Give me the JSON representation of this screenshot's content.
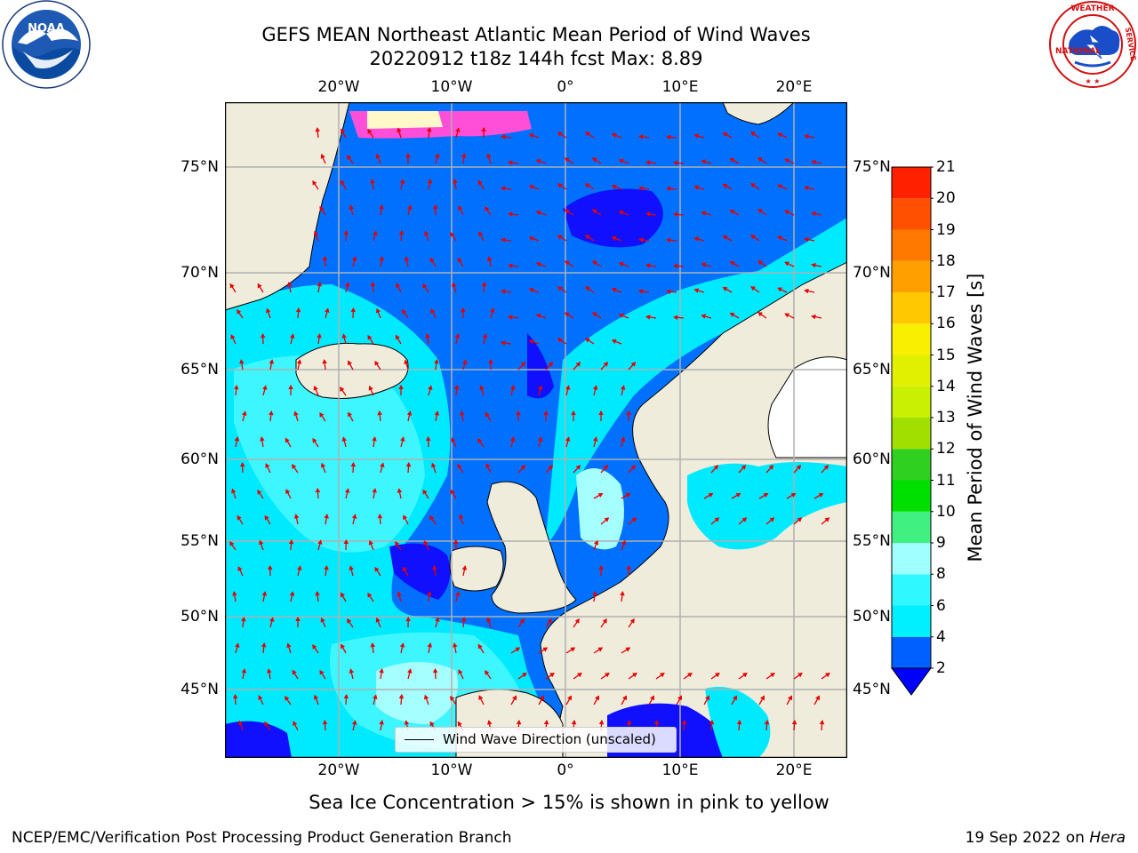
{
  "title": {
    "line1": "GEFS MEAN Northeast Atlantic Mean Period of Wind Waves",
    "line2": "20220912 t18z 144h fcst   Max: 8.89"
  },
  "logos": {
    "left": {
      "name": "noaa-logo",
      "text": "NOAA",
      "ring_text": "NATIONAL OCEANIC AND ATMOSPHERIC ADMINISTRATION · U.S. DEPARTMENT OF COMMERCE"
    },
    "right": {
      "name": "nws-logo",
      "ring_text": "NATIONAL WEATHER SERVICE"
    }
  },
  "map": {
    "lon_ticks": [
      "20°W",
      "10°W",
      "0°",
      "10°E",
      "20°E"
    ],
    "lat_ticks": [
      "75°N",
      "70°N",
      "65°N",
      "60°N",
      "55°N",
      "50°N",
      "45°N"
    ],
    "legend": "Wind Wave Direction (unscaled)",
    "max_period": 8.89,
    "colors": {
      "land": "#efecdc",
      "grid": "#b0b0b0",
      "arrow": "#e60000"
    }
  },
  "colorbar": {
    "title": "Mean Period of Wind Waves [s]",
    "ticks": [
      "2",
      "4",
      "6",
      "8",
      "9",
      "10",
      "11",
      "12",
      "13",
      "14",
      "15",
      "16",
      "17",
      "18",
      "19",
      "20",
      "21"
    ],
    "bands": [
      {
        "from": 2,
        "to": 4,
        "color": "#0060ff"
      },
      {
        "from": 4,
        "to": 6,
        "color": "#00f0ff"
      },
      {
        "from": 6,
        "to": 8,
        "color": "#30f8ff"
      },
      {
        "from": 8,
        "to": 9,
        "color": "#a0ffff"
      },
      {
        "from": 9,
        "to": 10,
        "color": "#40f080"
      },
      {
        "from": 10,
        "to": 11,
        "color": "#00e000"
      },
      {
        "from": 11,
        "to": 12,
        "color": "#30d020"
      },
      {
        "from": 12,
        "to": 13,
        "color": "#a0e000"
      },
      {
        "from": 13,
        "to": 14,
        "color": "#c8f000"
      },
      {
        "from": 14,
        "to": 15,
        "color": "#e0f000"
      },
      {
        "from": 15,
        "to": 16,
        "color": "#f8f000"
      },
      {
        "from": 16,
        "to": 17,
        "color": "#ffc800"
      },
      {
        "from": 17,
        "to": 18,
        "color": "#ffa000"
      },
      {
        "from": 18,
        "to": 19,
        "color": "#ff7800"
      },
      {
        "from": 19,
        "to": 20,
        "color": "#ff5000"
      },
      {
        "from": 20,
        "to": 21,
        "color": "#ff2000"
      }
    ],
    "under_color": "#0000ff"
  },
  "ice_note": "Sea Ice Concentration > 15% is shown in pink to yellow",
  "footer": {
    "left": "NCEP/EMC/Verification Post Processing Product Generation Branch",
    "right_date": "19 Sep 2022 on ",
    "right_machine": "Hera"
  }
}
